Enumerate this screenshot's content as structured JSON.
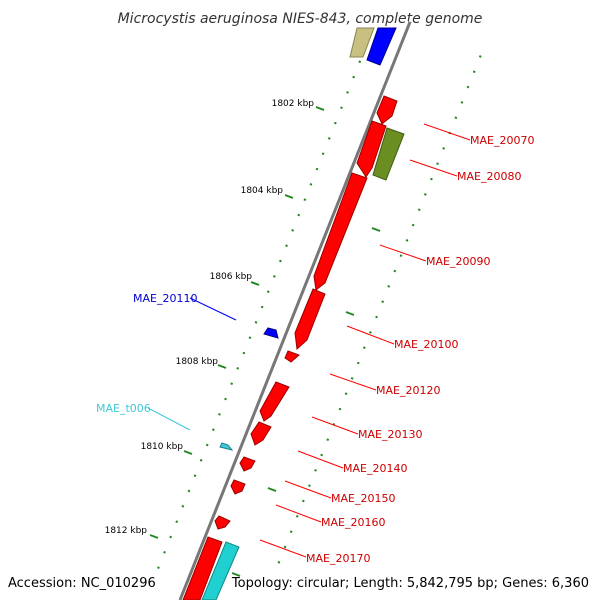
{
  "title": "Microcystis aeruginosa NIES-843, complete genome",
  "footer": {
    "accession": "Accession: NC_010296",
    "summary": "Topology: circular; Length: 5,842,795 bp; Genes: 6,360"
  },
  "ticks": [
    "1802 kbp",
    "1804 kbp",
    "1806 kbp",
    "1808 kbp",
    "1810 kbp",
    "1812 kbp"
  ],
  "colors": {
    "cds": "#ff0000",
    "cds_dark": "#990000",
    "rna": "#40c8d8",
    "cds_other": "#0000ff",
    "olive": "#6b8e23",
    "khaki": "#c8c080",
    "backbone": "#777777",
    "ticks": "#228822"
  },
  "genes": [
    {
      "id": "MAE_20070",
      "strand": "+",
      "color": "cds"
    },
    {
      "id": "MAE_20080",
      "strand": "+",
      "color": "olive"
    },
    {
      "id": "MAE_20090",
      "strand": "+",
      "color": "cds"
    },
    {
      "id": "MAE_20100",
      "strand": "+",
      "color": "cds"
    },
    {
      "id": "MAE_20110",
      "strand": "-",
      "color": "cds_other"
    },
    {
      "id": "MAE_20120",
      "strand": "+",
      "color": "cds"
    },
    {
      "id": "MAE_t006",
      "strand": "-",
      "color": "rna"
    },
    {
      "id": "MAE_20130",
      "strand": "+",
      "color": "cds"
    },
    {
      "id": "MAE_20140",
      "strand": "+",
      "color": "cds"
    },
    {
      "id": "MAE_20150",
      "strand": "+",
      "color": "cds"
    },
    {
      "id": "MAE_20160",
      "strand": "+",
      "color": "cds"
    },
    {
      "id": "MAE_20170",
      "strand": "+",
      "color": "cds"
    }
  ]
}
